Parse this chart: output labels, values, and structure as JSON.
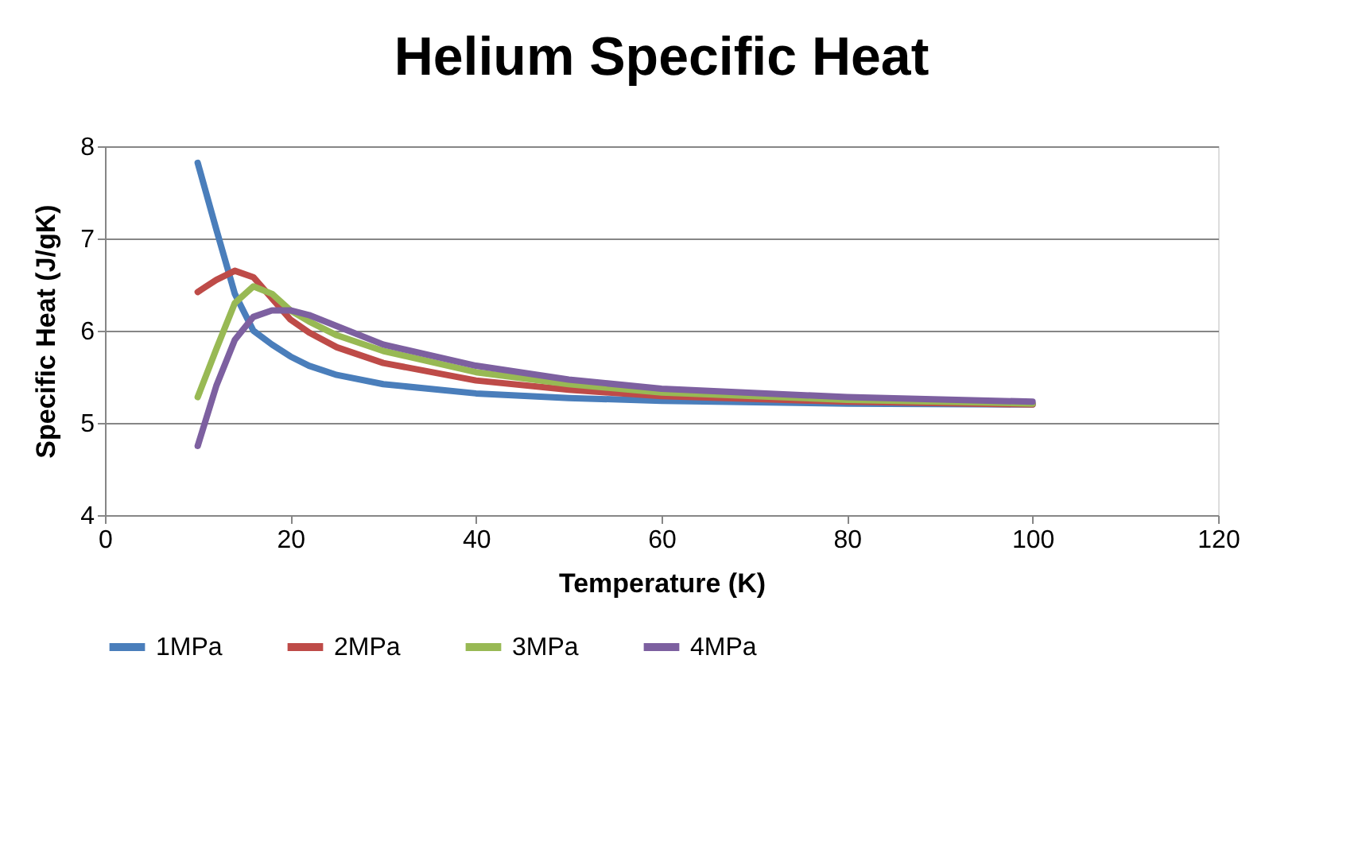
{
  "chart_data": {
    "type": "line",
    "title": "Helium Specific Heat",
    "xlabel": "Temperature (K)",
    "ylabel": "Specific Heat (J/gK)",
    "x": [
      10,
      12,
      14,
      16,
      18,
      20,
      22,
      25,
      30,
      40,
      50,
      60,
      80,
      100
    ],
    "series": [
      {
        "name": "1MPa",
        "color": "#4a7ebb",
        "values": [
          7.82,
          7.1,
          6.4,
          6.0,
          5.85,
          5.72,
          5.62,
          5.52,
          5.42,
          5.32,
          5.27,
          5.24,
          5.21,
          5.2
        ]
      },
      {
        "name": "2MPa",
        "color": "#be4b48",
        "values": [
          6.42,
          6.55,
          6.65,
          6.58,
          6.35,
          6.12,
          5.98,
          5.82,
          5.65,
          5.46,
          5.36,
          5.29,
          5.23,
          5.2
        ]
      },
      {
        "name": "3MPa",
        "color": "#98b954",
        "values": [
          5.28,
          5.8,
          6.3,
          6.48,
          6.4,
          6.22,
          6.1,
          5.95,
          5.78,
          5.55,
          5.42,
          5.33,
          5.25,
          5.21
        ]
      },
      {
        "name": "4MPa",
        "color": "#7d60a0",
        "values": [
          4.75,
          5.4,
          5.9,
          6.15,
          6.22,
          6.22,
          6.17,
          6.05,
          5.85,
          5.62,
          5.47,
          5.37,
          5.28,
          5.23
        ]
      }
    ],
    "xlim": [
      0,
      120
    ],
    "xticks": [
      0,
      20,
      40,
      60,
      80,
      100,
      120
    ],
    "ylim": [
      4,
      8
    ],
    "yticks": [
      4,
      5,
      6,
      7,
      8
    ],
    "grid": "y",
    "legend": "bottom",
    "marker": "none",
    "line_style": "solid"
  }
}
